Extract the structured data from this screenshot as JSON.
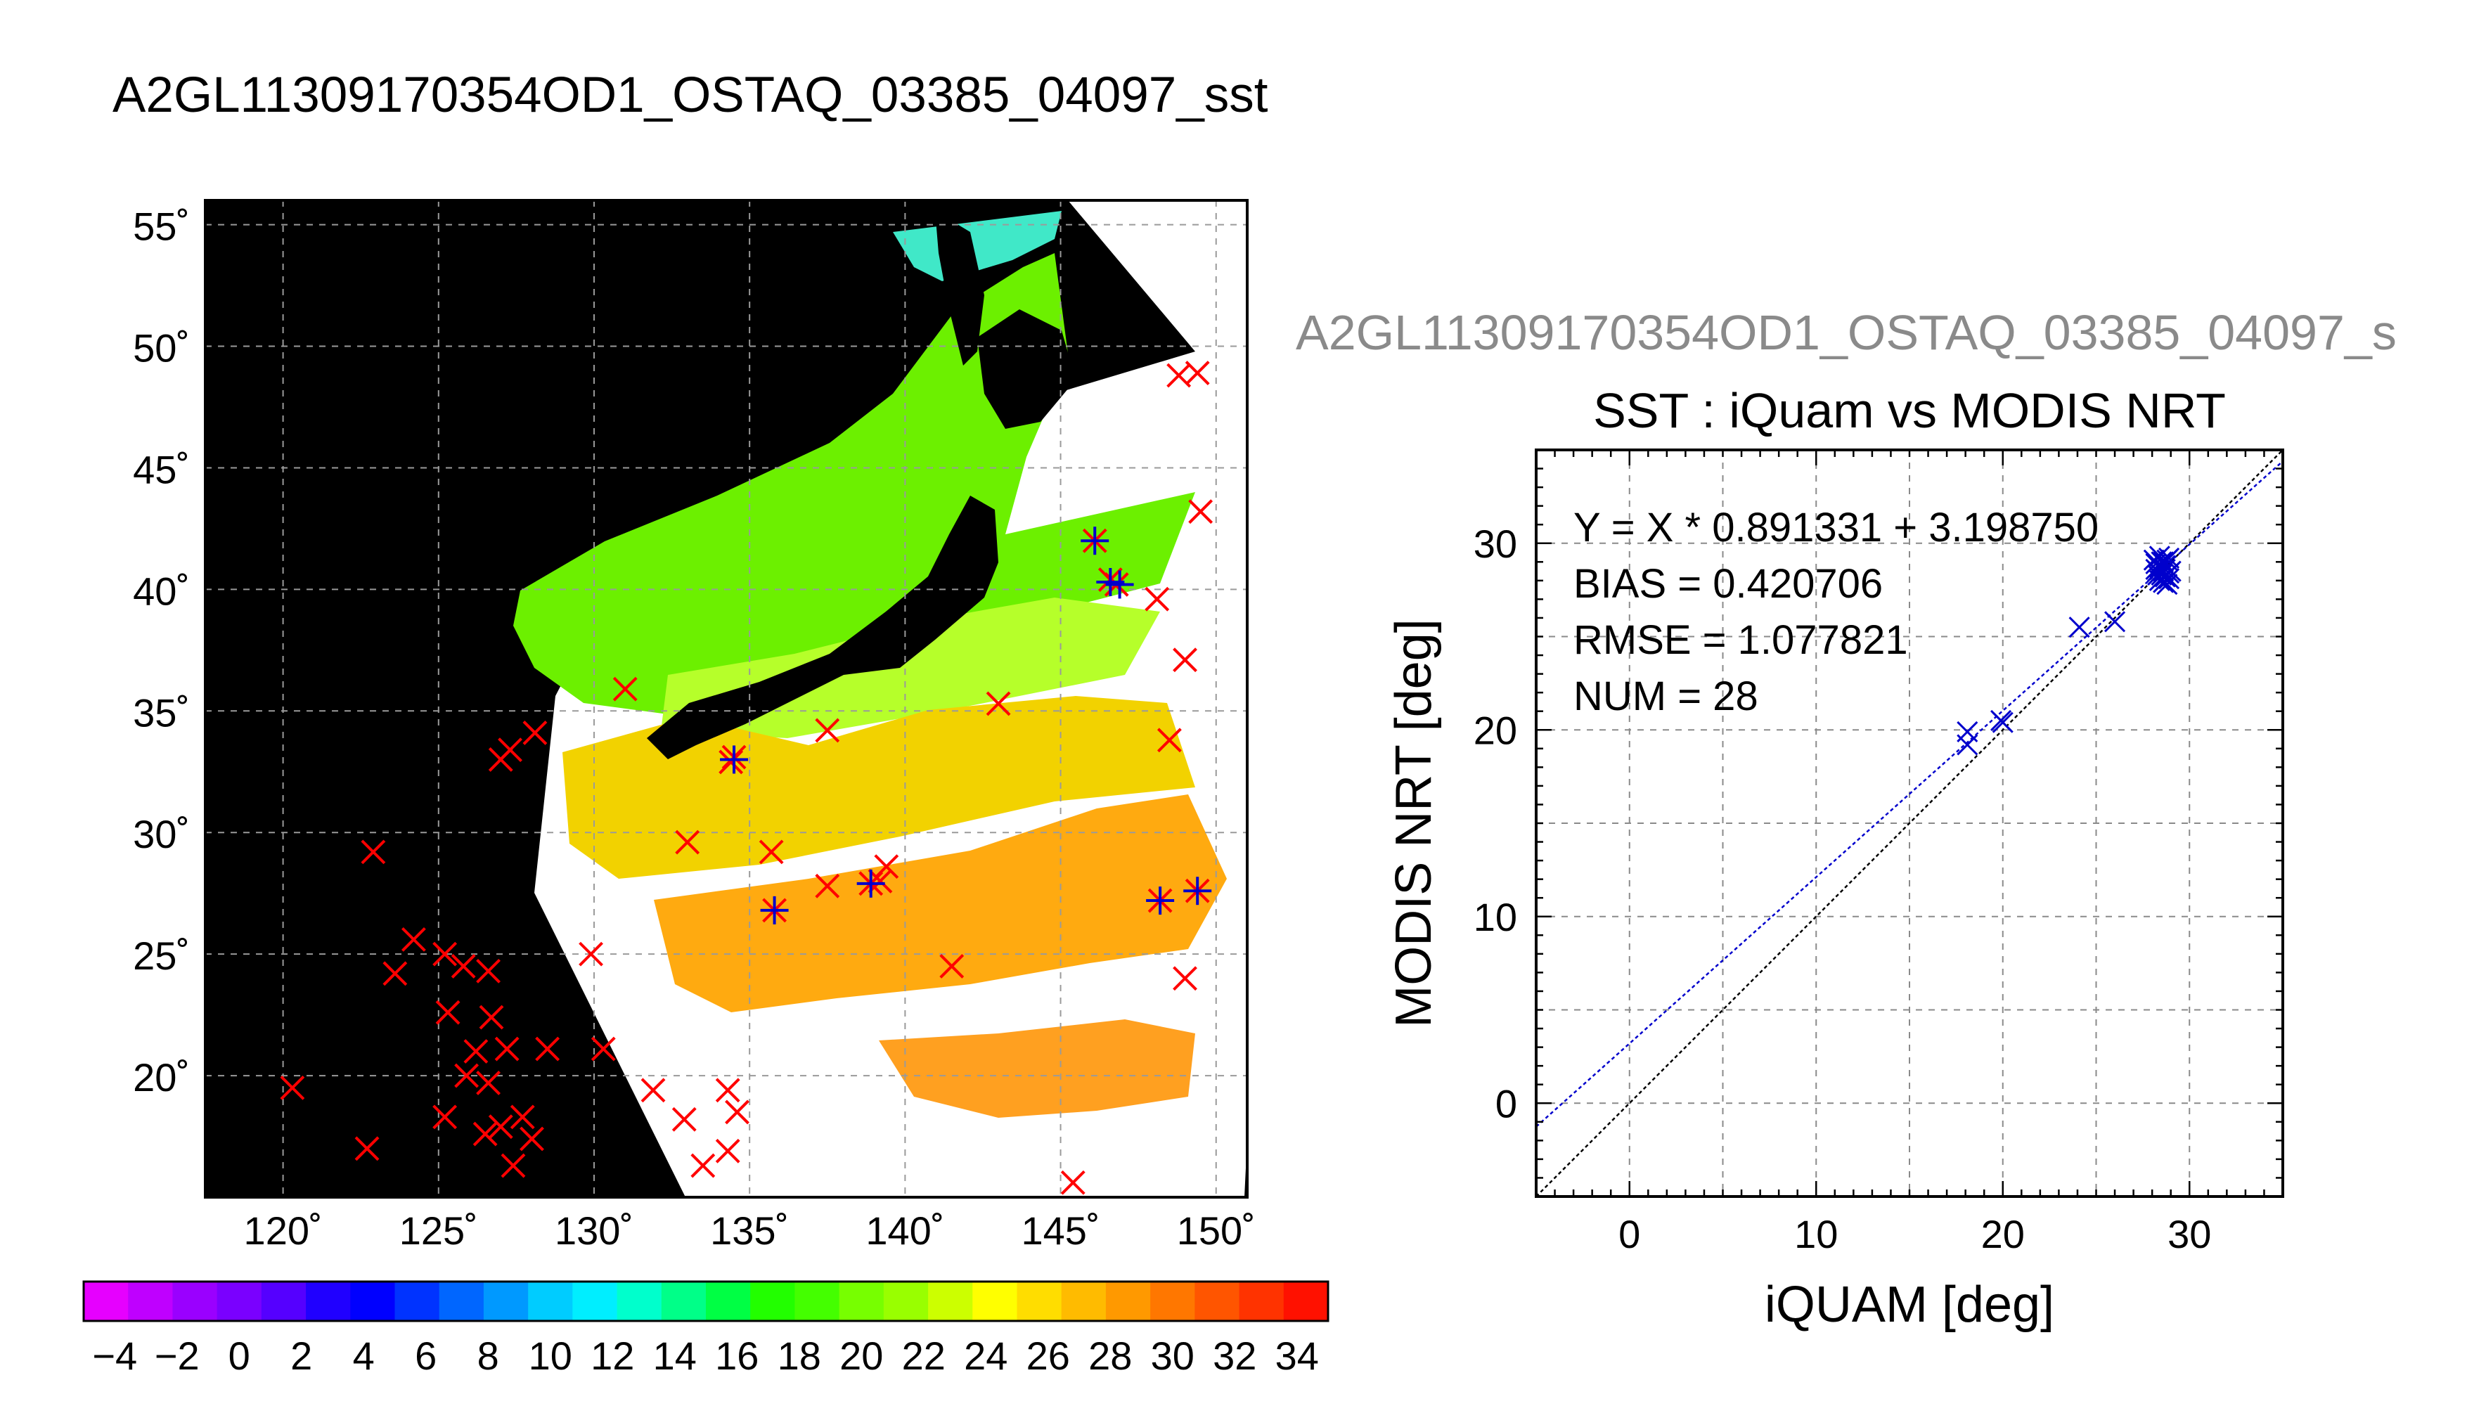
{
  "page_title": "A2GL11309170354OD1_OSTAQ_03385_04097_sst",
  "chart_data": [
    {
      "type": "map",
      "lon_ticks": [
        "120˚",
        "125˚",
        "130˚",
        "135˚",
        "140˚",
        "145˚",
        "150˚"
      ],
      "lat_ticks": [
        "55˚",
        "50˚",
        "45˚",
        "40˚",
        "35˚",
        "30˚",
        "25˚",
        "20˚"
      ],
      "lon_range": [
        117.5,
        151
      ],
      "lat_range": [
        15,
        56
      ],
      "grid": true,
      "colorbar": {
        "min": -5,
        "max": 35,
        "labels": [
          "−4",
          "−2",
          "0",
          "2",
          "4",
          "6",
          "8",
          "10",
          "12",
          "14",
          "16",
          "18",
          "20",
          "22",
          "24",
          "26",
          "28",
          "30",
          "32",
          "34"
        ],
        "colors": [
          "#e600ff",
          "#bf00ff",
          "#9a00ff",
          "#7a00ff",
          "#5500ff",
          "#2000ff",
          "#0000ff",
          "#0033ff",
          "#0066ff",
          "#0099ff",
          "#00ccff",
          "#00eeff",
          "#00ffcc",
          "#00ff88",
          "#00ff44",
          "#22ff00",
          "#44ff00",
          "#77ff00",
          "#99ff00",
          "#ccff00",
          "#ffff00",
          "#ffdd00",
          "#ffbb00",
          "#ff9900",
          "#ff7700",
          "#ff5500",
          "#ff3300",
          "#ff1100"
        ]
      },
      "colors": {
        "land": "#000000",
        "cloud": "#ffffff",
        "iquam_mark": "#ff0000",
        "matchup_mark": "#0000cc"
      },
      "iquam_points": [
        [
          148.8,
          48.8
        ],
        [
          149.4,
          48.9
        ],
        [
          149.5,
          43.2
        ],
        [
          148.1,
          39.6
        ],
        [
          149.0,
          37.1
        ],
        [
          148.5,
          33.8
        ],
        [
          149.4,
          27.6
        ],
        [
          149.0,
          24.0
        ],
        [
          146.1,
          42.0
        ],
        [
          146.6,
          40.4
        ],
        [
          146.8,
          40.2
        ],
        [
          148.2,
          27.2
        ],
        [
          143.0,
          35.3
        ],
        [
          137.5,
          34.2
        ],
        [
          131.0,
          35.9
        ],
        [
          128.1,
          34.1
        ],
        [
          127.0,
          33.0
        ],
        [
          127.3,
          33.4
        ],
        [
          134.5,
          33.1
        ],
        [
          134.4,
          32.9
        ],
        [
          133.0,
          29.6
        ],
        [
          135.7,
          29.2
        ],
        [
          139.4,
          28.6
        ],
        [
          138.9,
          27.9
        ],
        [
          139.2,
          28.0
        ],
        [
          137.5,
          27.8
        ],
        [
          135.8,
          26.8
        ],
        [
          141.5,
          24.5
        ],
        [
          122.9,
          29.2
        ],
        [
          124.2,
          25.6
        ],
        [
          123.6,
          24.2
        ],
        [
          125.2,
          25.0
        ],
        [
          125.8,
          24.5
        ],
        [
          126.6,
          24.3
        ],
        [
          129.9,
          25.0
        ],
        [
          125.3,
          22.6
        ],
        [
          126.7,
          22.4
        ],
        [
          126.2,
          21.0
        ],
        [
          127.2,
          21.1
        ],
        [
          128.5,
          21.1
        ],
        [
          130.3,
          21.1
        ],
        [
          125.9,
          20.0
        ],
        [
          126.6,
          19.7
        ],
        [
          120.3,
          19.5
        ],
        [
          125.2,
          18.3
        ],
        [
          126.5,
          17.6
        ],
        [
          127.0,
          17.9
        ],
        [
          127.7,
          18.3
        ],
        [
          128.0,
          17.4
        ],
        [
          127.4,
          16.3
        ],
        [
          122.7,
          17.0
        ],
        [
          131.9,
          19.4
        ],
        [
          132.9,
          18.2
        ],
        [
          133.5,
          16.3
        ],
        [
          134.3,
          16.9
        ],
        [
          134.3,
          19.4
        ],
        [
          134.6,
          18.5
        ],
        [
          145.4,
          15.6
        ]
      ],
      "matchup_points": [
        [
          134.5,
          33.0
        ],
        [
          146.1,
          42.0
        ],
        [
          146.6,
          40.3
        ],
        [
          146.9,
          40.2
        ],
        [
          138.9,
          27.9
        ],
        [
          135.8,
          26.8
        ],
        [
          148.2,
          27.2
        ],
        [
          149.4,
          27.6
        ]
      ]
    },
    {
      "type": "scatter",
      "super_title": "A2GL11309170354OD1_OSTAQ_03385_04097_s",
      "title": "SST : iQuam vs MODIS NRT",
      "xlabel": "iQUAM [deg]",
      "ylabel": "MODIS NRT [deg]",
      "xlim": [
        -5,
        35
      ],
      "ylim": [
        -5,
        35
      ],
      "x_ticks": [
        "0",
        "10",
        "20",
        "30"
      ],
      "y_ticks": [
        "0",
        "10",
        "20",
        "30"
      ],
      "grid": true,
      "annotations": [
        "Y = X * 0.891331 + 3.198750",
        "BIAS = 0.420706",
        "RMSE = 1.077821",
        "NUM = 28"
      ],
      "fit": {
        "slope": 0.891331,
        "intercept": 3.19875
      },
      "colors": {
        "points": "#0000cc",
        "fit_line": "#0000cc",
        "identity_line": "#000000"
      },
      "points": [
        [
          18.1,
          19.9
        ],
        [
          18.1,
          19.2
        ],
        [
          19.9,
          20.5
        ],
        [
          20.0,
          20.4
        ],
        [
          24.1,
          25.5
        ],
        [
          26.0,
          25.8
        ],
        [
          28.1,
          29.1
        ],
        [
          28.2,
          28.6
        ],
        [
          28.3,
          28.3
        ],
        [
          28.4,
          28.0
        ],
        [
          28.5,
          29.0
        ],
        [
          28.6,
          28.5
        ],
        [
          28.7,
          28.2
        ],
        [
          28.8,
          27.8
        ],
        [
          28.9,
          29.2
        ],
        [
          28.4,
          28.7
        ],
        [
          28.6,
          29.0
        ],
        [
          28.9,
          28.4
        ],
        [
          28.2,
          28.9
        ],
        [
          28.7,
          28.8
        ],
        [
          29.0,
          28.5
        ],
        [
          28.5,
          28.3
        ],
        [
          28.3,
          28.5
        ],
        [
          28.8,
          29.1
        ],
        [
          28.6,
          27.9
        ],
        [
          28.9,
          28.1
        ],
        [
          28.4,
          29.3
        ],
        [
          28.7,
          28.6
        ]
      ]
    }
  ]
}
